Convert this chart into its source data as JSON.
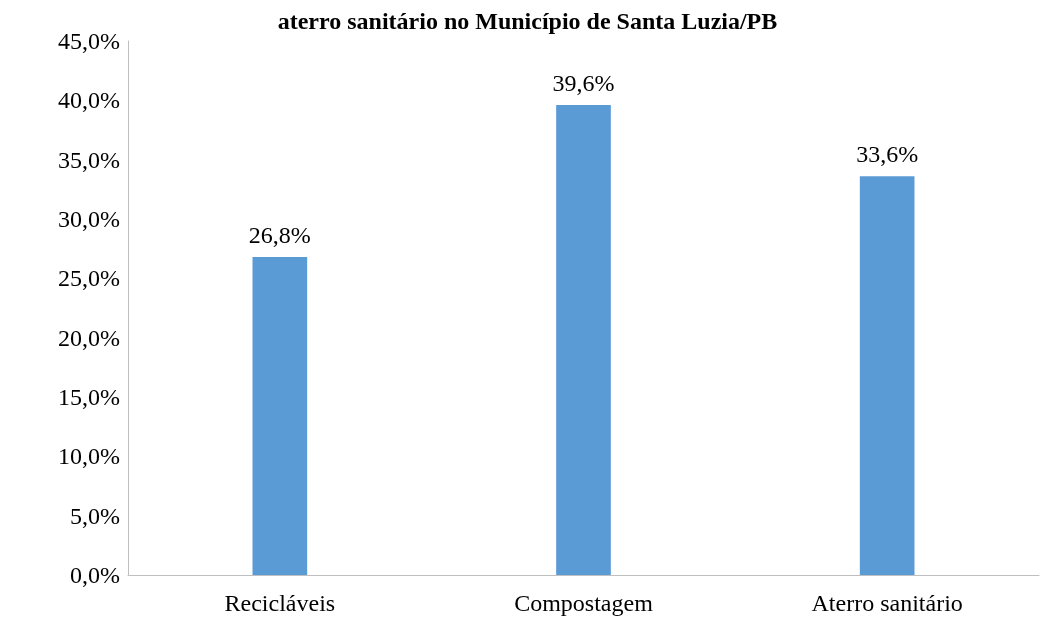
{
  "chart_data": {
    "type": "bar",
    "title": "aterro sanitário no Município de Santa Luzia/PB",
    "categories": [
      "Recicláveis",
      "Compostagem",
      "Aterro sanitário"
    ],
    "values": [
      26.8,
      39.6,
      33.6
    ],
    "value_labels": [
      "26,8%",
      "39,6%",
      "33,6%"
    ],
    "color": "#5b9bd5",
    "ylim": [
      0,
      45
    ],
    "yticks": [
      {
        "value": 0,
        "label": "0,0%"
      },
      {
        "value": 5,
        "label": "5,0%"
      },
      {
        "value": 10,
        "label": "10,0%"
      },
      {
        "value": 15,
        "label": "15,0%"
      },
      {
        "value": 20,
        "label": "20,0%"
      },
      {
        "value": 25,
        "label": "25,0%"
      },
      {
        "value": 30,
        "label": "30,0%"
      },
      {
        "value": 35,
        "label": "35,0%"
      },
      {
        "value": 40,
        "label": "40,0%"
      },
      {
        "value": 45,
        "label": "45,0%"
      }
    ],
    "grid": false
  }
}
